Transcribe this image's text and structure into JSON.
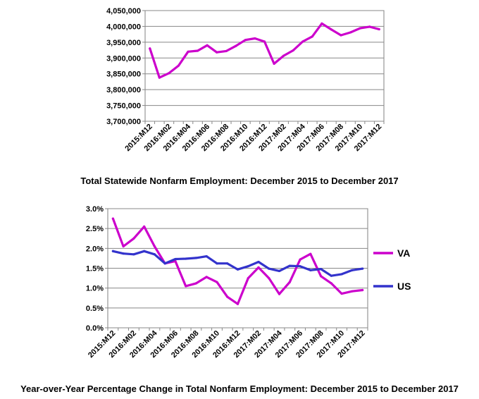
{
  "captions": {
    "chart1": "Total Statewide Nonfarm Employment:  December 2015 to December 2017",
    "chart2": "Year-over-Year Percentage Change in Total Nonfarm Employment: December 2015 to December 2017"
  },
  "chart_data": [
    {
      "type": "line",
      "title": "Total Statewide Nonfarm Employment:  December 2015 to December 2017",
      "xlabel": "",
      "ylabel": "",
      "grid": true,
      "ylim": [
        3700000,
        4050000
      ],
      "yticks": [
        3700000,
        3750000,
        3800000,
        3850000,
        3900000,
        3950000,
        4000000,
        4050000
      ],
      "ytick_labels": [
        "3,700,000",
        "3,750,000",
        "3,800,000",
        "3,850,000",
        "3,900,000",
        "3,950,000",
        "4,000,000",
        "4,050,000"
      ],
      "x": [
        "2015:M12",
        "2016:M01",
        "2016:M02",
        "2016:M03",
        "2016:M04",
        "2016:M05",
        "2016:M06",
        "2016:M07",
        "2016:M08",
        "2016:M09",
        "2016:M10",
        "2016:M11",
        "2016:M12",
        "2017:M01",
        "2017:M02",
        "2017:M03",
        "2017:M04",
        "2017:M05",
        "2017:M06",
        "2017:M07",
        "2017:M08",
        "2017:M09",
        "2017:M10",
        "2017:M11",
        "2017:M12"
      ],
      "xtick_labels": [
        "2015:M12",
        "2016:M02",
        "2016:M04",
        "2016:M06",
        "2016:M08",
        "2016:M10",
        "2016:M12",
        "2017:M02",
        "2017:M04",
        "2017:M06",
        "2017:M08",
        "2017:M10",
        "2017:M12"
      ],
      "series": [
        {
          "name": "",
          "color": "#cc00cc",
          "values": [
            3930000,
            3838000,
            3852000,
            3876000,
            3920000,
            3923000,
            3940000,
            3918000,
            3922000,
            3938000,
            3957000,
            3962000,
            3952000,
            3882000,
            3907000,
            3924000,
            3952000,
            3968000,
            4009000,
            3990000,
            3972000,
            3981000,
            3994000,
            3999000,
            3991000
          ]
        }
      ]
    },
    {
      "type": "line",
      "title": "Year-over-Year Percentage Change in Total Nonfarm Employment: December 2015 to December 2017",
      "xlabel": "",
      "ylabel": "",
      "grid": true,
      "legend_position": "right",
      "ylim": [
        0,
        3
      ],
      "yticks": [
        0,
        0.5,
        1,
        1.5,
        2,
        2.5,
        3
      ],
      "ytick_labels": [
        "0.0%",
        "0.5%",
        "1.0%",
        "1.5%",
        "2.0%",
        "2.5%",
        "3.0%"
      ],
      "x": [
        "2015:M12",
        "2016:M01",
        "2016:M02",
        "2016:M03",
        "2016:M04",
        "2016:M05",
        "2016:M06",
        "2016:M07",
        "2016:M08",
        "2016:M09",
        "2016:M10",
        "2016:M11",
        "2016:M12",
        "2017:M01",
        "2017:M02",
        "2017:M03",
        "2017:M04",
        "2017:M05",
        "2017:M06",
        "2017:M07",
        "2017:M08",
        "2017:M09",
        "2017:M10",
        "2017:M11",
        "2017:M12"
      ],
      "xtick_labels": [
        "2015:M12",
        "2016:M02",
        "2016:M04",
        "2016:M06",
        "2016:M08",
        "2016:M10",
        "2016:M12",
        "2017:M02",
        "2017:M04",
        "2017:M06",
        "2017:M08",
        "2017:M10",
        "2017:M12"
      ],
      "series": [
        {
          "name": "VA",
          "color": "#cc00cc",
          "values": [
            2.75,
            2.05,
            2.25,
            2.55,
            2.05,
            1.62,
            1.68,
            1.05,
            1.12,
            1.28,
            1.15,
            0.78,
            0.6,
            1.25,
            1.52,
            1.25,
            0.85,
            1.15,
            1.72,
            1.86,
            1.3,
            1.12,
            0.86,
            0.92,
            0.95
          ]
        },
        {
          "name": "US",
          "color": "#3333cc",
          "values": [
            1.93,
            1.87,
            1.85,
            1.93,
            1.85,
            1.62,
            1.73,
            1.74,
            1.76,
            1.8,
            1.62,
            1.62,
            1.47,
            1.55,
            1.66,
            1.49,
            1.43,
            1.56,
            1.55,
            1.45,
            1.48,
            1.31,
            1.35,
            1.45,
            1.49
          ]
        }
      ]
    }
  ]
}
